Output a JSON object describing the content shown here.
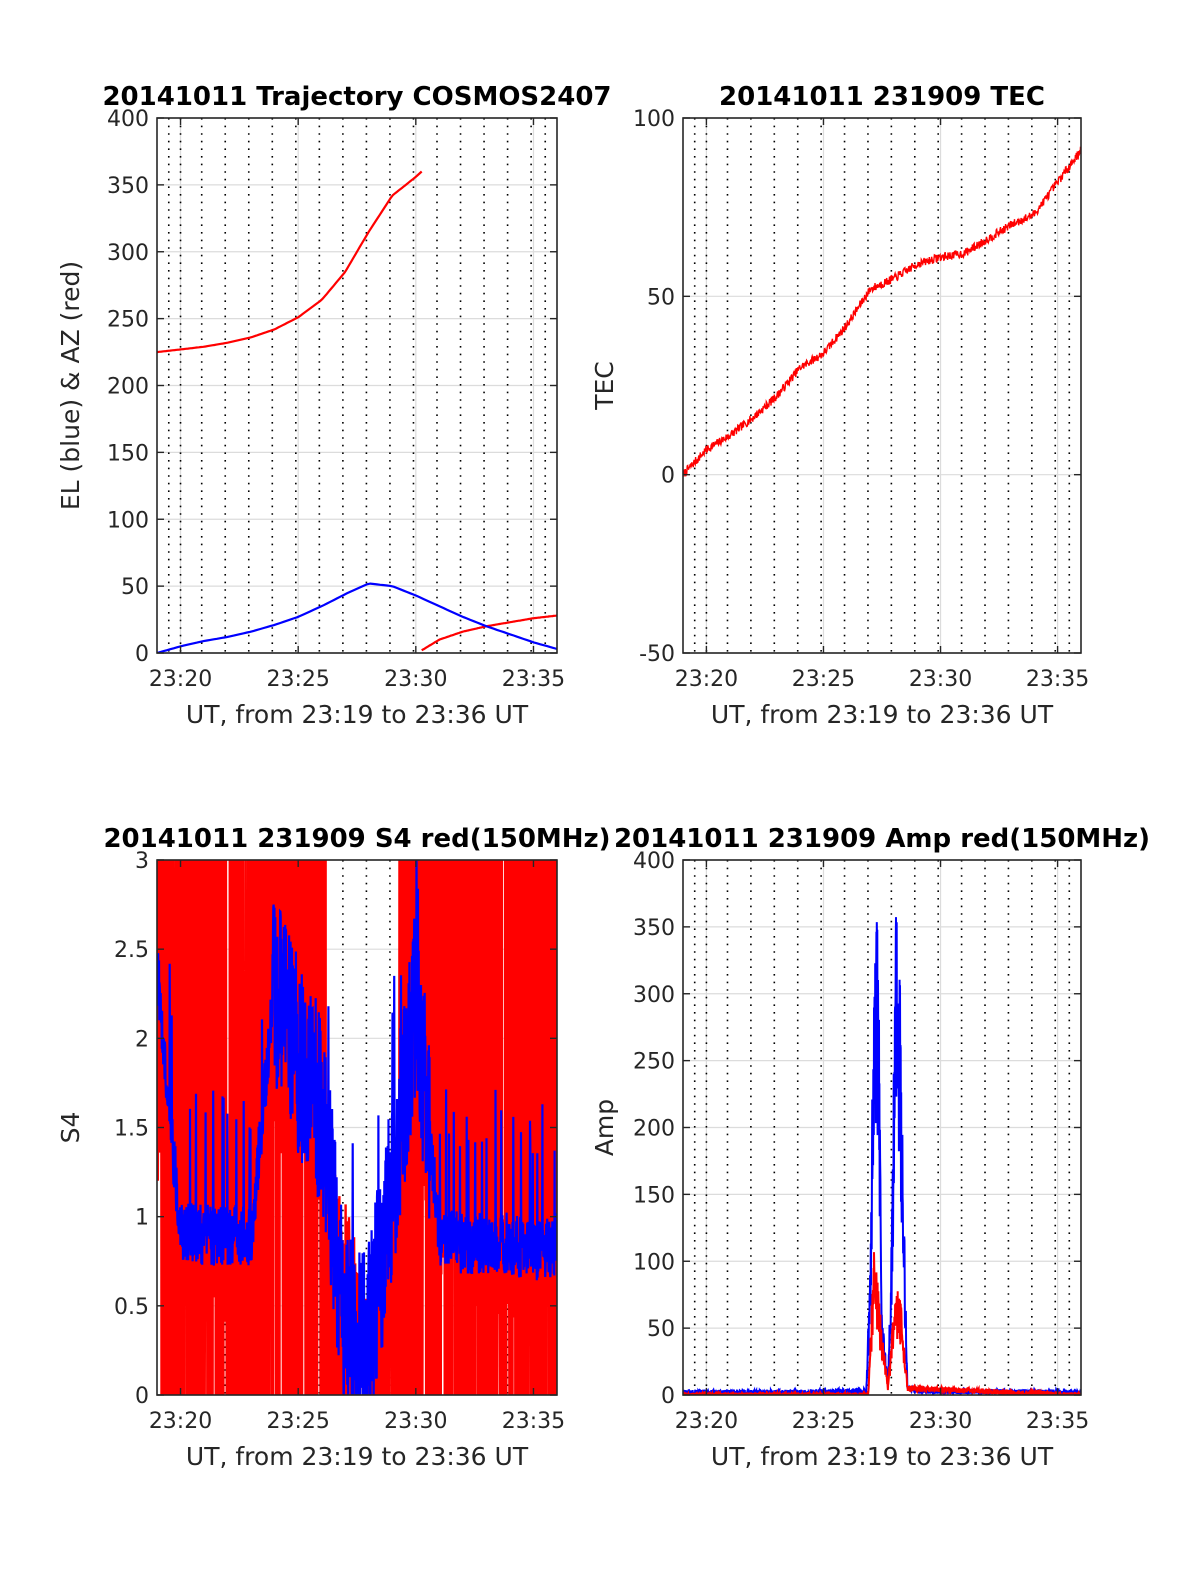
{
  "figure": {
    "colors": {
      "red": "#ff0000",
      "blue": "#0000ff",
      "axis": "#262626",
      "grid": "#dcdcdc",
      "vline": "#000000"
    }
  },
  "chart_data": [
    {
      "type": "line",
      "title": "20141011 Trajectory COSMOS2407",
      "xlabel": "UT, from 23:19 to 23:36 UT",
      "ylabel": "EL (blue) & AZ (red)",
      "xlim": [
        "23:19",
        "23:36"
      ],
      "ylim": [
        0,
        400
      ],
      "xticks": [
        "23:20",
        "23:25",
        "23:30",
        "23:35"
      ],
      "yticks": [
        "0",
        "50",
        "100",
        "150",
        "200",
        "250",
        "300",
        "350",
        "400"
      ],
      "grid": true,
      "series": [
        {
          "color": "#ff0000",
          "x": [
            "23:19",
            "23:20",
            "23:21",
            "23:22",
            "23:23",
            "23:24",
            "23:25",
            "23:26",
            "23:27",
            "23:28",
            "23:29",
            "23:30",
            "23:30:15"
          ],
          "values": [
            225,
            227,
            229,
            232,
            236,
            242,
            251,
            264,
            285,
            315,
            342,
            356,
            360
          ]
        },
        {
          "color": "#ff0000",
          "x": [
            "23:30:15",
            "23:31",
            "23:32",
            "23:33",
            "23:34",
            "23:35",
            "23:36"
          ],
          "values": [
            2,
            10,
            16,
            20,
            23,
            26,
            28
          ]
        },
        {
          "color": "#0000ff",
          "x": [
            "23:19",
            "23:20",
            "23:21",
            "23:22",
            "23:23",
            "23:24",
            "23:25",
            "23:26",
            "23:27",
            "23:28",
            "23:29",
            "23:30",
            "23:31",
            "23:32",
            "23:33",
            "23:34",
            "23:35",
            "23:36"
          ],
          "values": [
            0,
            5,
            9,
            12,
            16,
            21,
            27,
            35,
            44,
            52,
            50,
            43,
            35,
            27,
            20,
            14,
            8,
            3
          ]
        }
      ]
    },
    {
      "type": "line",
      "title": "20141011 231909 TEC",
      "xlabel": "UT, from 23:19 to 23:36 UT",
      "ylabel": "TEC",
      "xlim": [
        "23:19",
        "23:36"
      ],
      "ylim": [
        -50,
        100
      ],
      "xticks": [
        "23:20",
        "23:25",
        "23:30",
        "23:35"
      ],
      "yticks": [
        "-50",
        "0",
        "50",
        "100"
      ],
      "grid": true,
      "series": [
        {
          "color": "#ff0000",
          "x": [
            "23:19",
            "23:20",
            "23:21",
            "23:22",
            "23:23",
            "23:24",
            "23:25",
            "23:26",
            "23:27",
            "23:28",
            "23:29",
            "23:30",
            "23:31",
            "23:32",
            "23:33",
            "23:34",
            "23:35",
            "23:36"
          ],
          "values": [
            0,
            7,
            11,
            16,
            22,
            30,
            34,
            42,
            52,
            55,
            59,
            61,
            62,
            66,
            70,
            73,
            82,
            91
          ]
        }
      ]
    },
    {
      "type": "line",
      "title": "20141011 231909 S4 red(150MHz)",
      "xlabel": "UT, from 23:19 to 23:36 UT",
      "ylabel": "S4",
      "xlim": [
        "23:19",
        "23:36"
      ],
      "ylim": [
        0,
        3
      ],
      "xticks": [
        "23:20",
        "23:25",
        "23:30",
        "23:35"
      ],
      "yticks": [
        "0",
        "0.5",
        "1",
        "1.5",
        "2",
        "2.5",
        "3"
      ],
      "grid": true,
      "series": [
        {
          "color": "#ff0000",
          "x": [
            "23:19",
            "23:20",
            "23:21",
            "23:22",
            "23:23",
            "23:24",
            "23:25",
            "23:26",
            "23:27",
            "23:28",
            "23:29",
            "23:30",
            "23:31",
            "23:32",
            "23:33",
            "23:34",
            "23:35",
            "23:36"
          ],
          "values": [
            1.5,
            0.8,
            0.7,
            0.7,
            0.8,
            1.6,
            1.5,
            1.3,
            0.8,
            0.3,
            1.0,
            1.6,
            0.8,
            0.7,
            0.7,
            0.7,
            0.7,
            0.7
          ]
        },
        {
          "color": "#0000ff",
          "x": [
            "23:19",
            "23:20",
            "23:21",
            "23:22",
            "23:23",
            "23:24",
            "23:25",
            "23:26",
            "23:27",
            "23:28",
            "23:29",
            "23:30",
            "23:31",
            "23:32",
            "23:33",
            "23:34",
            "23:35",
            "23:36"
          ],
          "values": [
            2.4,
            0.9,
            0.9,
            0.9,
            0.9,
            2.3,
            1.9,
            1.6,
            0.4,
            0.3,
            1.2,
            2.2,
            0.9,
            0.85,
            0.85,
            0.85,
            0.8,
            0.85
          ]
        }
      ]
    },
    {
      "type": "line",
      "title": "20141011 231909 Amp red(150MHz)",
      "xlabel": "UT, from 23:19 to 23:36 UT",
      "ylabel": "Amp",
      "xlim": [
        "23:19",
        "23:36"
      ],
      "ylim": [
        0,
        400
      ],
      "xticks": [
        "23:20",
        "23:25",
        "23:30",
        "23:35"
      ],
      "yticks": [
        "0",
        "50",
        "100",
        "150",
        "200",
        "250",
        "300",
        "350",
        "400"
      ],
      "grid": true,
      "series": [
        {
          "color": "#0000ff",
          "x": [
            "23:19",
            "23:24",
            "23:26:50",
            "23:27",
            "23:27:10",
            "23:27:20",
            "23:27:30",
            "23:27:45",
            "23:27:55",
            "23:28:05",
            "23:28:15",
            "23:28:25",
            "23:28:35",
            "23:29",
            "23:36"
          ],
          "values": [
            2,
            2,
            3,
            100,
            366,
            330,
            60,
            8,
            120,
            346,
            320,
            150,
            5,
            3,
            2
          ]
        },
        {
          "color": "#ff0000",
          "x": [
            "23:19",
            "23:26:55",
            "23:27:10",
            "23:27:25",
            "23:27:45",
            "23:28:05",
            "23:28:20",
            "23:28:35",
            "23:36"
          ],
          "values": [
            0,
            0,
            110,
            60,
            5,
            80,
            65,
            5,
            0
          ]
        }
      ]
    }
  ]
}
